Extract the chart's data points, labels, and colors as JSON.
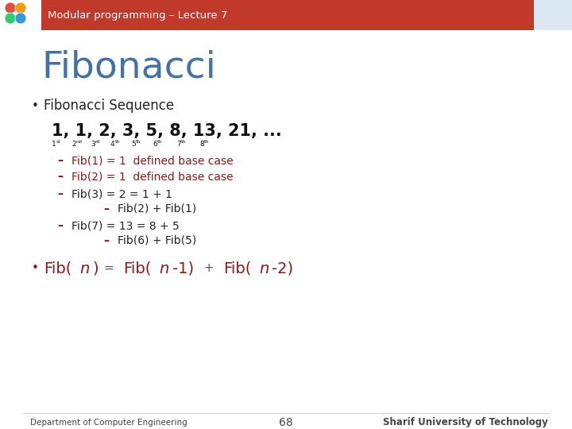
{
  "header_bg": "#c0392b",
  "header_text": "Modular programming – Lecture 7",
  "header_text_color": "#ffffff",
  "slide_bg": "#ffffff",
  "title": "Fibonacci",
  "title_color": "#4472a8",
  "bullet1": "Fibonacci Sequence",
  "bullet1_color": "#222222",
  "sequence_line": "1, 1, 2, 3, 5, 8, 13, 21, ...",
  "sequence_color": "#111111",
  "ordinals": [
    "1",
    "st",
    "2",
    "nd",
    "3",
    "rd",
    "4",
    "th",
    "5",
    "th",
    "6",
    "th",
    "7",
    "th",
    "8",
    "th"
  ],
  "ordinals_color": "#111111",
  "dash_color": "#8b0000",
  "items": [
    {
      "text": "Fib(1) = 1  defined base case",
      "color": "#8b1a1a",
      "indent": 0,
      "dash": true
    },
    {
      "text": "Fib(2) = 1  defined base case",
      "color": "#8b1a1a",
      "indent": 0,
      "dash": true
    },
    {
      "text": "Fib(3) = 2 = 1 + 1",
      "color": "#222222",
      "indent": 0,
      "dash": true
    },
    {
      "text": "Fib(2) + Fib(1)",
      "color": "#222222",
      "indent": 1,
      "dash": true
    },
    {
      "text": "Fib(7) = 13 = 8 + 5",
      "color": "#222222",
      "indent": 0,
      "dash": true
    },
    {
      "text": "Fib(6) + Fib(5)",
      "color": "#222222",
      "indent": 1,
      "dash": true
    }
  ],
  "formula_color": "#8b1a1a",
  "formula_plus_color": "#555555",
  "footer_left": "Department of Computer Engineering",
  "footer_center": "68",
  "footer_right": "Sharif University of Technology",
  "footer_color": "#444444"
}
